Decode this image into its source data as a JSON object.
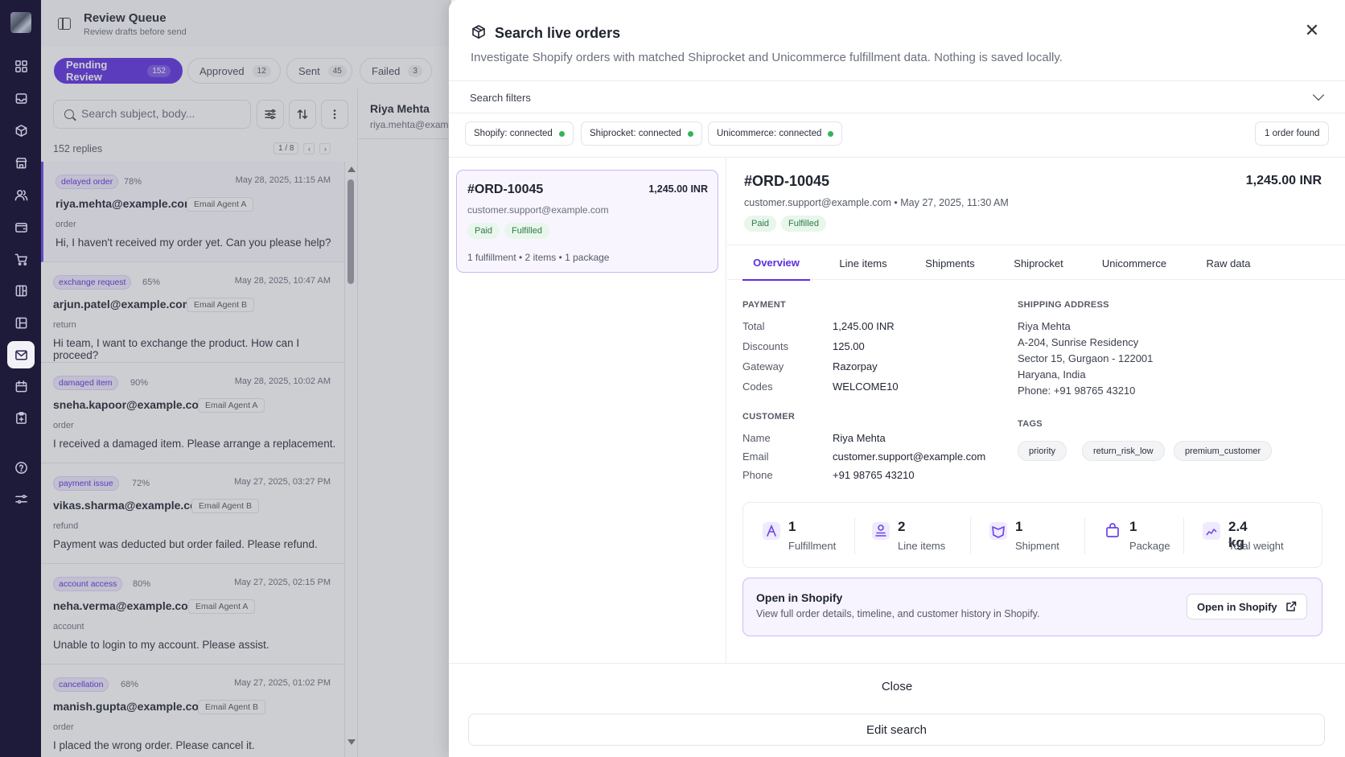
{
  "header": {
    "title": "Review Queue",
    "subtitle": "Review drafts before send"
  },
  "tabs": [
    {
      "label": "Pending Review",
      "count": "152"
    },
    {
      "label": "Approved",
      "count": "12"
    },
    {
      "label": "Sent",
      "count": "45"
    },
    {
      "label": "Failed",
      "count": "3"
    }
  ],
  "search": {
    "placeholder": "Search subject, body..."
  },
  "list_meta": {
    "count_label": "152 replies",
    "page": "1 / 8",
    "prev": "‹",
    "next": "›"
  },
  "replies": [
    {
      "badge": "delayed order",
      "confidence": "78%",
      "date": "May 28, 2025, 11:15 AM",
      "from": "riya.mehta@example.com",
      "agent": "Email Agent A",
      "category": "order",
      "body": "Hi, I haven't received my order yet. Can you please help?"
    },
    {
      "badge": "exchange request",
      "confidence": "65%",
      "date": "May 28, 2025, 10:47 AM",
      "from": "arjun.patel@example.com",
      "agent": "Email Agent B",
      "category": "return",
      "body": "Hi team, I want to exchange the product. How can I proceed?"
    },
    {
      "badge": "damaged item",
      "confidence": "90%",
      "date": "May 28, 2025, 10:02 AM",
      "from": "sneha.kapoor@example.com",
      "agent": "Email Agent A",
      "category": "order",
      "body": "I received a damaged item. Please arrange a replacement."
    },
    {
      "badge": "payment issue",
      "confidence": "72%",
      "date": "May 27, 2025, 03:27 PM",
      "from": "vikas.sharma@example.com",
      "agent": "Email Agent B",
      "category": "refund",
      "body": "Payment was deducted but order failed. Please refund."
    },
    {
      "badge": "account access",
      "confidence": "80%",
      "date": "May 27, 2025, 02:15 PM",
      "from": "neha.verma@example.com",
      "agent": "Email Agent A",
      "category": "account",
      "body": "Unable to login to my account. Please assist."
    },
    {
      "badge": "cancellation",
      "confidence": "68%",
      "date": "May 27, 2025, 01:02 PM",
      "from": "manish.gupta@example.com",
      "agent": "Email Agent B",
      "category": "order",
      "body": "I placed the wrong order. Please cancel it."
    }
  ],
  "detail_peek": {
    "name": "Riya Mehta",
    "email": "riya.mehta@example.com"
  },
  "modal": {
    "title": "Search live orders",
    "subtitle": "Investigate Shopify orders with matched Shiprocket and Unicommerce fulfillment data. Nothing is saved locally.",
    "filters_label": "Search filters",
    "connections": [
      {
        "label": "Shopify: connected"
      },
      {
        "label": "Shiprocket: connected"
      },
      {
        "label": "Unicommerce: connected"
      }
    ],
    "found_label": "1 order found",
    "result_card": {
      "order": "#ORD-10045",
      "amount": "1,245.00 INR",
      "email": "customer.support@example.com",
      "pill_paid": "Paid",
      "pill_fulfilled": "Fulfilled",
      "meta": "1 fulfillment • 2 items • 1 package"
    },
    "order": {
      "number": "#ORD-10045",
      "amount": "1,245.00 INR",
      "email_date": "customer.support@example.com • May 27, 2025, 11:30 AM",
      "pill_paid": "Paid",
      "pill_fulfilled": "Fulfilled"
    },
    "order_tabs": [
      "Overview",
      "Line items",
      "Shipments",
      "Shiprocket",
      "Unicommerce",
      "Raw data"
    ],
    "payment": {
      "heading": "PAYMENT",
      "rows": [
        {
          "k": "Total",
          "v": "1,245.00 INR"
        },
        {
          "k": "Discounts",
          "v": "125.00"
        },
        {
          "k": "Gateway",
          "v": "Razorpay"
        },
        {
          "k": "Codes",
          "v": "WELCOME10"
        }
      ]
    },
    "customer": {
      "heading": "CUSTOMER",
      "rows": [
        {
          "k": "Name",
          "v": "Riya Mehta"
        },
        {
          "k": "Email",
          "v": "customer.support@example.com"
        },
        {
          "k": "Phone",
          "v": "+91 98765 43210"
        }
      ]
    },
    "shipping": {
      "heading": "SHIPPING ADDRESS",
      "lines": [
        "Riya Mehta",
        "A-204, Sunrise Residency",
        "Sector 15, Gurgaon - 122001",
        "Haryana, India",
        "Phone: +91 98765 43210"
      ]
    },
    "tags": {
      "heading": "TAGS",
      "items": [
        "priority",
        "return_risk_low",
        "premium_customer"
      ]
    },
    "stats": [
      {
        "value": "1",
        "label": "Fulfillment",
        "icon": "fulfillment-icon"
      },
      {
        "value": "2",
        "label": "Line items",
        "icon": "line-items-icon"
      },
      {
        "value": "1",
        "label": "Shipment",
        "icon": "shipment-icon"
      },
      {
        "value": "1",
        "label": "Package",
        "icon": "package-icon"
      },
      {
        "value": "2.4 kg",
        "label": "Total weight",
        "icon": "weight-icon"
      }
    ],
    "shopify_cta": {
      "title": "Open in Shopify",
      "subtitle": "View full order details, timeline, and customer history in Shopify.",
      "button": "Open in Shopify"
    },
    "footer": {
      "close": "Close",
      "edit": "Edit search"
    }
  },
  "colors": {
    "accent": "#5b2ee0",
    "rail": "#1e1a3a",
    "connected_dot": "#32b45a"
  }
}
